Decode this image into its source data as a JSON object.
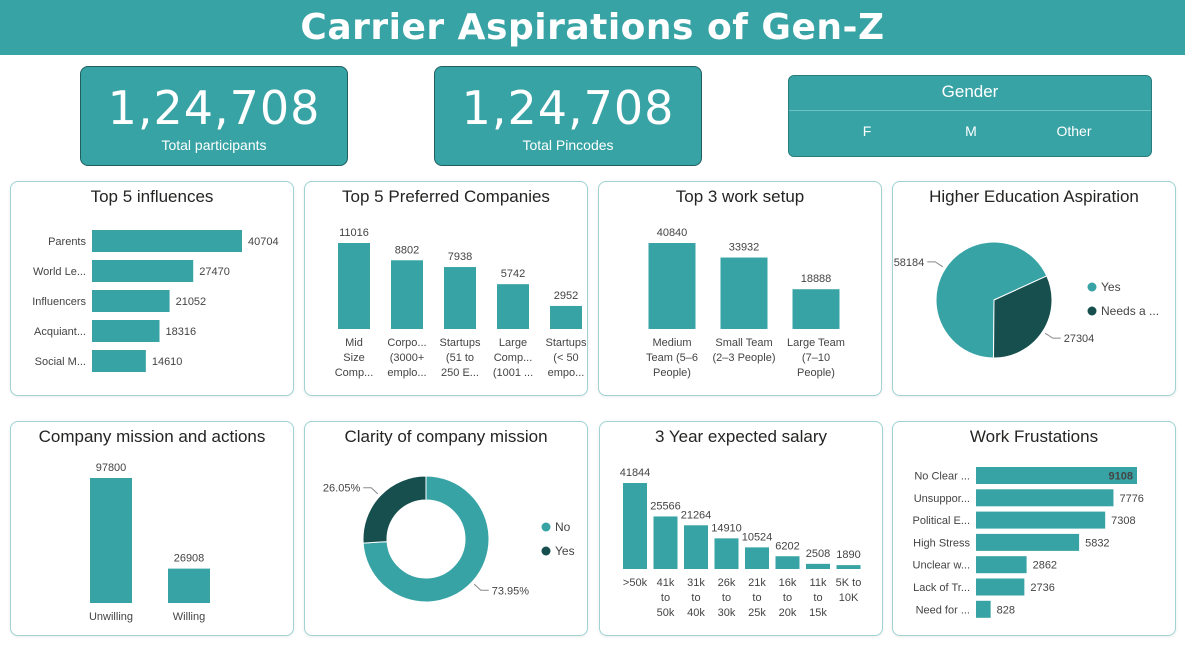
{
  "header": {
    "title": "Carrier Aspirations of Gen-Z"
  },
  "kpis": [
    {
      "value": "1,24,708",
      "label": "Total participants"
    },
    {
      "value": "1,24,708",
      "label": "Total Pincodes"
    }
  ],
  "slicer": {
    "title": "Gender",
    "options": [
      "F",
      "M",
      "Other"
    ]
  },
  "colors": {
    "teal": "#38a3a5",
    "dark": "#174f4f",
    "header": "#38a3a5"
  },
  "chart_data": [
    {
      "id": "influences",
      "type": "bar",
      "orientation": "horizontal",
      "title": "Top 5 influences",
      "categories": [
        "Parents",
        "World Le...",
        "Influencers",
        "Acquiant...",
        "Social M..."
      ],
      "values": [
        40704,
        27470,
        21052,
        18316,
        14610
      ]
    },
    {
      "id": "companies",
      "type": "bar",
      "title": "Top 5 Preferred Companies",
      "categories": [
        [
          "Mid",
          "Size",
          "Comp..."
        ],
        [
          "Corpo...",
          "(3000+",
          "emplo..."
        ],
        [
          "Startups",
          "(51 to",
          "250 E..."
        ],
        [
          "Large",
          "Comp...",
          "(1001 ..."
        ],
        [
          "Startups",
          "(< 50",
          "empo..."
        ]
      ],
      "values": [
        11016,
        8802,
        7938,
        5742,
        2952
      ]
    },
    {
      "id": "worksetup",
      "type": "bar",
      "title": "Top 3 work setup",
      "categories": [
        [
          "Medium",
          "Team (5–6",
          "People)"
        ],
        [
          "Small Team",
          "(2–3 People)"
        ],
        [
          "Large Team",
          "(7–10",
          "People)"
        ]
      ],
      "values": [
        40840,
        33932,
        18888
      ]
    },
    {
      "id": "highered",
      "type": "pie",
      "title": "Higher Education Aspiration",
      "labels": [
        "Yes",
        "Needs a ..."
      ],
      "values": [
        58184,
        27304
      ],
      "colors": [
        "#38a3a5",
        "#174f4f"
      ]
    },
    {
      "id": "mission",
      "type": "bar",
      "title": "Company mission and actions",
      "categories": [
        [
          "Unwilling"
        ],
        [
          "Willing"
        ]
      ],
      "values": [
        97800,
        26908
      ]
    },
    {
      "id": "clarity",
      "type": "pie",
      "donut": true,
      "title": "Clarity of company mission",
      "labels": [
        "No",
        "Yes"
      ],
      "values": [
        73.95,
        26.05
      ],
      "value_labels": [
        "73.95%",
        "26.05%"
      ],
      "colors": [
        "#38a3a5",
        "#174f4f"
      ]
    },
    {
      "id": "salary",
      "type": "bar",
      "title": "3 Year expected salary",
      "categories": [
        [
          ">50k"
        ],
        [
          "41k",
          "to",
          "50k"
        ],
        [
          "31k",
          "to",
          "40k"
        ],
        [
          "26k",
          "to",
          "30k"
        ],
        [
          "21k",
          "to",
          "25k"
        ],
        [
          "16k",
          "to",
          "20k"
        ],
        [
          "11k",
          "to",
          "15k"
        ],
        [
          "5K to",
          "10K"
        ]
      ],
      "values": [
        41844,
        25566,
        21264,
        14910,
        10524,
        6202,
        2508,
        1890
      ]
    },
    {
      "id": "frustrations",
      "type": "bar",
      "orientation": "horizontal",
      "title": "Work Frustations",
      "categories": [
        "No Clear ...",
        "Unsuppor...",
        "Political E...",
        "High Stress",
        "Unclear w...",
        "Lack of Tr...",
        "Need for ..."
      ],
      "values": [
        9108,
        7776,
        7308,
        5832,
        2862,
        2736,
        828
      ]
    }
  ]
}
